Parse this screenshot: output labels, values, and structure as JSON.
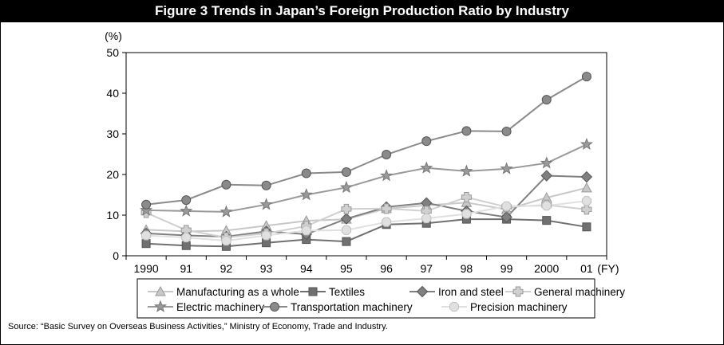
{
  "figure_title": "Figure 3  Trends in Japan’s Foreign Production Ratio by Industry",
  "source_note": "Source: “Basic Survey on Overseas Business Activities,” Ministry of Economy, Trade and Industry.",
  "chart_data": {
    "type": "line",
    "title": "Figure 3  Trends in Japan’s Foreign Production Ratio by Industry",
    "ylabel": "(%)",
    "xlabel": "(FY)",
    "categories": [
      "1990",
      "91",
      "92",
      "93",
      "94",
      "95",
      "96",
      "97",
      "98",
      "99",
      "2000",
      "01"
    ],
    "ylim": [
      0,
      50
    ],
    "yticks": [
      "0",
      "10",
      "20",
      "30",
      "40",
      "50"
    ],
    "grid": false,
    "legend_position": "bottom",
    "series": [
      {
        "name": "Manufacturing as a whole",
        "marker": "triangle",
        "color": "#c8c8c8",
        "values": [
          6.4,
          6.0,
          6.2,
          7.4,
          8.6,
          9.0,
          11.6,
          12.4,
          13.1,
          11.4,
          14.3,
          16.7
        ]
      },
      {
        "name": "Textiles",
        "marker": "square",
        "color": "#707070",
        "values": [
          3.0,
          2.5,
          2.3,
          3.2,
          4.0,
          3.5,
          7.7,
          8.0,
          9.0,
          9.0,
          8.7,
          7.1
        ]
      },
      {
        "name": "Iron and steel",
        "marker": "diamond",
        "color": "#808080",
        "values": [
          5.5,
          5.0,
          4.7,
          6.0,
          5.3,
          9.1,
          12.0,
          13.0,
          11.0,
          9.5,
          19.7,
          19.4
        ]
      },
      {
        "name": "General machinery",
        "marker": "plus",
        "color": "#d0d0d0",
        "values": [
          10.6,
          6.3,
          4.5,
          5.5,
          7.3,
          11.5,
          11.6,
          11.0,
          14.4,
          12.0,
          12.5,
          11.4
        ]
      },
      {
        "name": "Electric machinery",
        "marker": "star",
        "color": "#9a9a9a",
        "values": [
          11.2,
          11.0,
          10.8,
          12.6,
          15.0,
          16.8,
          19.7,
          21.6,
          20.8,
          21.4,
          22.8,
          27.4
        ]
      },
      {
        "name": "Transportation machinery",
        "marker": "circle",
        "color": "#8a8a8a",
        "values": [
          12.6,
          13.7,
          17.5,
          17.3,
          20.3,
          20.6,
          24.9,
          28.2,
          30.7,
          30.6,
          38.4,
          44.1
        ]
      },
      {
        "name": "Precision machinery",
        "marker": "hexagon",
        "color": "#e0e0e0",
        "values": [
          5.0,
          4.5,
          3.7,
          5.0,
          6.2,
          6.3,
          8.3,
          9.2,
          10.3,
          12.2,
          12.3,
          13.5
        ]
      }
    ]
  }
}
